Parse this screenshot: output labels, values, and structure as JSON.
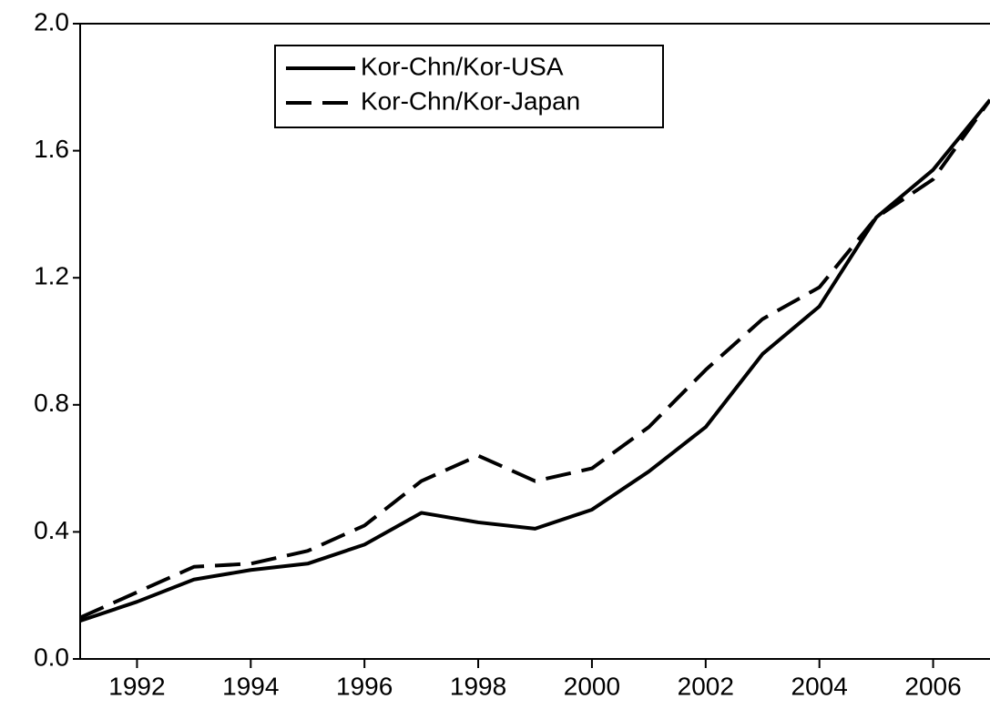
{
  "chart_data": {
    "type": "line",
    "x": [
      1991,
      1992,
      1993,
      1994,
      1995,
      1996,
      1997,
      1998,
      1999,
      2000,
      2001,
      2002,
      2003,
      2004,
      2005,
      2006,
      2007
    ],
    "series": [
      {
        "name": "Kor-Chn/Kor-USA",
        "color": "#000000",
        "style": "solid",
        "values": [
          0.12,
          0.18,
          0.25,
          0.28,
          0.3,
          0.36,
          0.46,
          0.43,
          0.41,
          0.47,
          0.59,
          0.73,
          0.96,
          1.11,
          1.39,
          1.54,
          1.76
        ]
      },
      {
        "name": "Kor-Chn/Kor-Japan",
        "color": "#000000",
        "style": "dashed",
        "values": [
          0.13,
          0.21,
          0.29,
          0.3,
          0.34,
          0.42,
          0.56,
          0.64,
          0.56,
          0.6,
          0.73,
          0.91,
          1.07,
          1.17,
          1.39,
          1.51,
          1.76
        ]
      }
    ],
    "xlim": [
      1991,
      2007
    ],
    "xticks": [
      1992,
      1994,
      1996,
      1998,
      2000,
      2002,
      2004,
      2006
    ],
    "ylim": [
      0.0,
      2.0
    ],
    "yticks": [
      {
        "value": 0,
        "label": "0.0"
      },
      0.4,
      0.8,
      1.2,
      1.6,
      {
        "value": 2,
        "label": "2.0"
      }
    ],
    "legend": "upper-left"
  }
}
